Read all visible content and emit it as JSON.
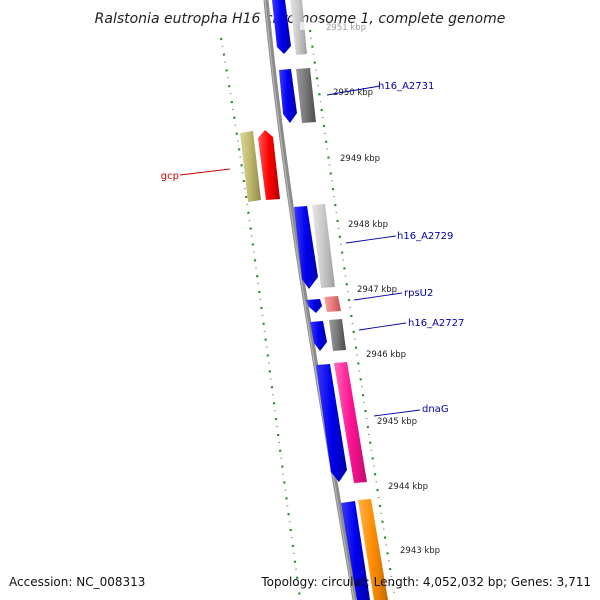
{
  "title": "Ralstonia eutropha H16 chromosome 1, complete genome",
  "footer": {
    "accession": "Accession: NC_008313",
    "summary": "Topology: circular; Length: 4,052,032 bp; Genes: 3,711"
  },
  "ticks": [
    {
      "label": "2951 kbp"
    },
    {
      "label": "2950 kbp"
    },
    {
      "label": "2949 kbp"
    },
    {
      "label": "2948 kbp"
    },
    {
      "label": "2947 kbp"
    },
    {
      "label": "2946 kbp"
    },
    {
      "label": "2945 kbp"
    },
    {
      "label": "2944 kbp"
    },
    {
      "label": "2943 kbp"
    }
  ],
  "gene_labels": [
    {
      "text": "h16_A2731",
      "color": "#0000aa"
    },
    {
      "text": "gcp",
      "color": "#cc0000"
    },
    {
      "text": "h16_A2729",
      "color": "#0000aa"
    },
    {
      "text": "rpsU2",
      "color": "#0000aa"
    },
    {
      "text": "h16_A2727",
      "color": "#0000aa"
    },
    {
      "text": "dnaG",
      "color": "#0000aa"
    }
  ],
  "colors": {
    "backbone": "#8c8c8c",
    "tick_marks": "#2e8b2e",
    "cds_blue": "#0000ee",
    "gene_gray_dark": "#777777",
    "gene_gray_light": "#c8c8c8",
    "gene_olive": "#bdb76b",
    "gene_red": "#ff0000",
    "gene_pink": "#e87a7a",
    "gene_magenta": "#ff1493",
    "gene_orange": "#ff8c00"
  }
}
